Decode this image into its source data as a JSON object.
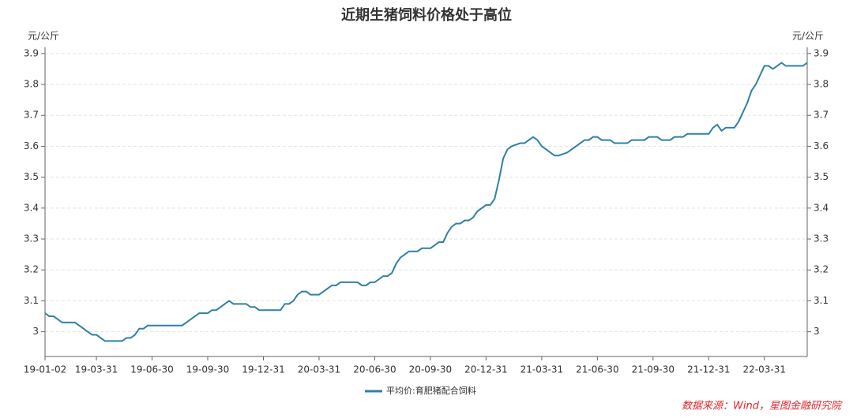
{
  "chart_data": {
    "type": "line",
    "title": "近期生猪饲料价格处于高位",
    "y_label": "元/公斤",
    "y2_label": "元/公斤",
    "source": "数据来源：Wind，星图金融研究院",
    "categories": [
      "19-01-02",
      null,
      null,
      null,
      null,
      null,
      null,
      null,
      null,
      null,
      null,
      null,
      "19-03-31",
      null,
      null,
      null,
      null,
      null,
      null,
      null,
      null,
      null,
      null,
      null,
      null,
      "19-06-30",
      null,
      null,
      null,
      null,
      null,
      null,
      null,
      null,
      null,
      null,
      null,
      null,
      "19-09-30",
      null,
      null,
      null,
      null,
      null,
      null,
      null,
      null,
      null,
      null,
      null,
      null,
      "19-12-31",
      null,
      null,
      null,
      null,
      null,
      null,
      null,
      null,
      null,
      null,
      null,
      null,
      "20-03-31",
      null,
      null,
      null,
      null,
      null,
      null,
      null,
      null,
      null,
      null,
      null,
      null,
      "20-06-30",
      null,
      null,
      null,
      null,
      null,
      null,
      null,
      null,
      null,
      null,
      null,
      null,
      "20-09-30",
      null,
      null,
      null,
      null,
      null,
      null,
      null,
      null,
      null,
      null,
      null,
      null,
      "20-12-31",
      null,
      null,
      null,
      null,
      null,
      null,
      null,
      null,
      null,
      null,
      null,
      null,
      "21-03-31",
      null,
      null,
      null,
      null,
      null,
      null,
      null,
      null,
      null,
      null,
      null,
      null,
      "21-06-30",
      null,
      null,
      null,
      null,
      null,
      null,
      null,
      null,
      null,
      null,
      null,
      null,
      "21-09-30",
      null,
      null,
      null,
      null,
      null,
      null,
      null,
      null,
      null,
      null,
      null,
      null,
      "21-12-31",
      null,
      null,
      null,
      null,
      null,
      null,
      null,
      null,
      null,
      null,
      null,
      null,
      "22-03-31",
      null,
      null,
      null,
      null,
      null,
      null,
      null,
      null,
      null,
      null
    ],
    "series": [
      {
        "name": "平均价:育肥猪配合饲料",
        "color": "#2f80a8",
        "values": [
          3.06,
          3.05,
          3.05,
          3.04,
          3.03,
          3.03,
          3.03,
          3.03,
          3.02,
          3.01,
          3.0,
          2.99,
          2.99,
          2.98,
          2.97,
          2.97,
          2.97,
          2.97,
          2.97,
          2.98,
          2.98,
          2.99,
          3.01,
          3.01,
          3.02,
          3.02,
          3.02,
          3.02,
          3.02,
          3.02,
          3.02,
          3.02,
          3.02,
          3.03,
          3.04,
          3.05,
          3.06,
          3.06,
          3.06,
          3.07,
          3.07,
          3.08,
          3.09,
          3.1,
          3.09,
          3.09,
          3.09,
          3.09,
          3.08,
          3.08,
          3.07,
          3.07,
          3.07,
          3.07,
          3.07,
          3.07,
          3.09,
          3.09,
          3.1,
          3.12,
          3.13,
          3.13,
          3.12,
          3.12,
          3.12,
          3.13,
          3.14,
          3.15,
          3.15,
          3.16,
          3.16,
          3.16,
          3.16,
          3.16,
          3.15,
          3.15,
          3.16,
          3.16,
          3.17,
          3.18,
          3.18,
          3.19,
          3.22,
          3.24,
          3.25,
          3.26,
          3.26,
          3.26,
          3.27,
          3.27,
          3.27,
          3.28,
          3.29,
          3.29,
          3.32,
          3.34,
          3.35,
          3.35,
          3.36,
          3.36,
          3.37,
          3.39,
          3.4,
          3.41,
          3.41,
          3.43,
          3.49,
          3.56,
          3.59,
          3.6,
          3.605,
          3.61,
          3.61,
          3.62,
          3.63,
          3.62,
          3.6,
          3.59,
          3.58,
          3.57,
          3.57,
          3.575,
          3.58,
          3.59,
          3.6,
          3.61,
          3.62,
          3.62,
          3.63,
          3.63,
          3.62,
          3.62,
          3.62,
          3.61,
          3.61,
          3.61,
          3.61,
          3.62,
          3.62,
          3.62,
          3.62,
          3.63,
          3.63,
          3.63,
          3.62,
          3.62,
          3.62,
          3.63,
          3.63,
          3.63,
          3.64,
          3.64,
          3.64,
          3.64,
          3.64,
          3.64,
          3.66,
          3.67,
          3.65,
          3.66,
          3.66,
          3.66,
          3.68,
          3.71,
          3.74,
          3.78,
          3.8,
          3.83,
          3.86,
          3.86,
          3.85,
          3.86,
          3.87,
          3.86,
          3.86,
          3.86,
          3.86,
          3.86,
          3.87
        ]
      }
    ],
    "ylim": [
      2.92,
      3.92
    ],
    "yticks": [
      3,
      3.1,
      3.2,
      3.3,
      3.4,
      3.5,
      3.6,
      3.7,
      3.8,
      3.9
    ],
    "y2lim": [
      2.92,
      3.92
    ],
    "y2ticks": [
      3,
      3.1,
      3.2,
      3.3,
      3.4,
      3.5,
      3.6,
      3.7,
      3.8,
      3.9
    ],
    "grid": true,
    "legend": "bottom"
  }
}
